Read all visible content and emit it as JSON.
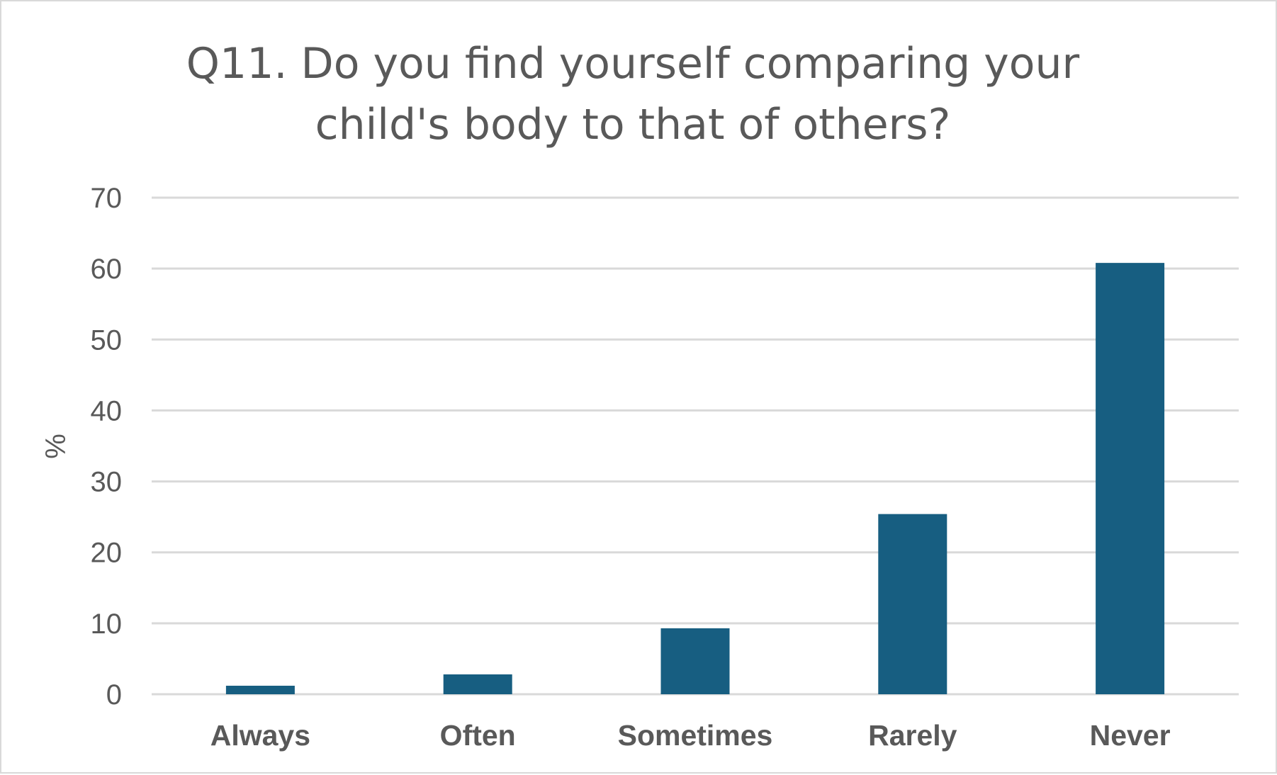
{
  "chart_data": {
    "type": "bar",
    "title_lines": [
      "Q11. Do you find yourself comparing your",
      "child's body to that of others?"
    ],
    "categories": [
      "Always",
      "Often",
      "Sometimes",
      "Rarely",
      "Never"
    ],
    "values": [
      1.2,
      2.8,
      9.3,
      25.4,
      60.8
    ],
    "xlabel": "",
    "ylabel": "%",
    "ylim": [
      0,
      70
    ],
    "yticks": [
      "0",
      "10",
      "20",
      "30",
      "40",
      "50",
      "60",
      "70"
    ],
    "grid": true,
    "legend": "none",
    "bar_color": "#175e81",
    "grid_color": "#d9d9d9",
    "text_color": "#595959"
  }
}
